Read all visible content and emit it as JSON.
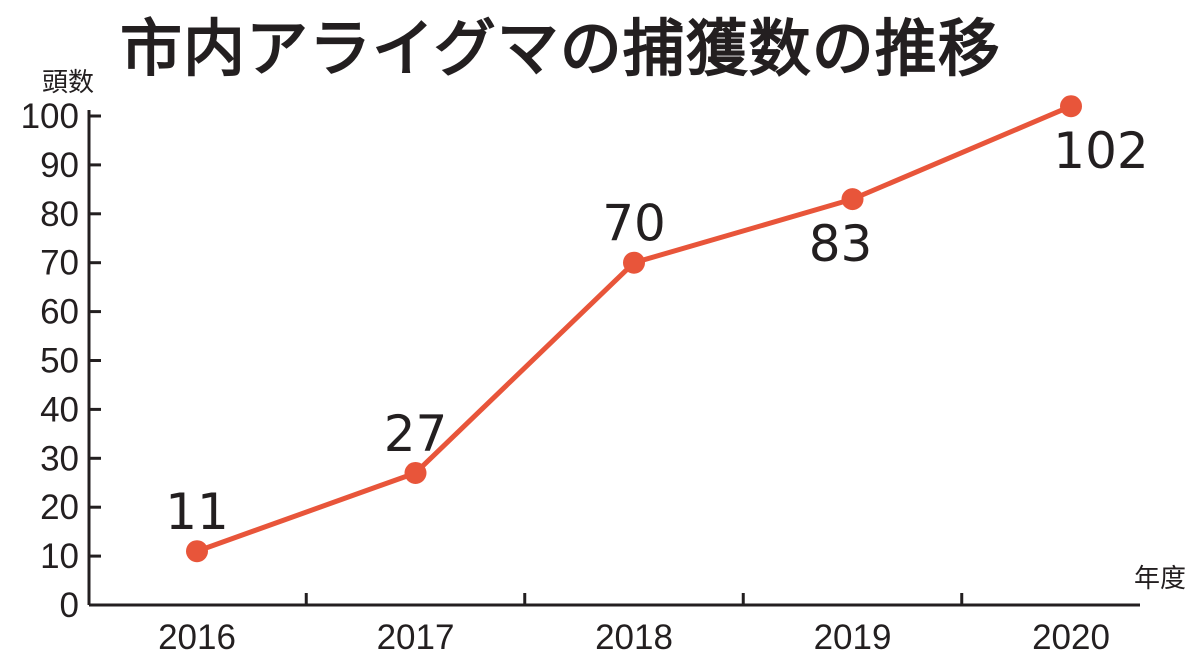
{
  "chart_data": {
    "type": "line",
    "title": "市内アライグマの捕獲数の推移",
    "ylabel": "頭数",
    "xlabel": "年度",
    "categories": [
      "2016",
      "2017",
      "2018",
      "2019",
      "2020"
    ],
    "series": [
      {
        "values": [
          11,
          27,
          70,
          83,
          102
        ]
      }
    ],
    "ylim": [
      0,
      100
    ],
    "yticks": [
      0,
      10,
      20,
      30,
      40,
      50,
      60,
      70,
      80,
      90,
      100
    ],
    "data_labels": [
      "11",
      "27",
      "70",
      "83",
      "102"
    ],
    "grid": false,
    "legend": "none",
    "colors": {
      "series": "#e8553a",
      "axis": "#231f20",
      "text": "#231f20"
    }
  }
}
